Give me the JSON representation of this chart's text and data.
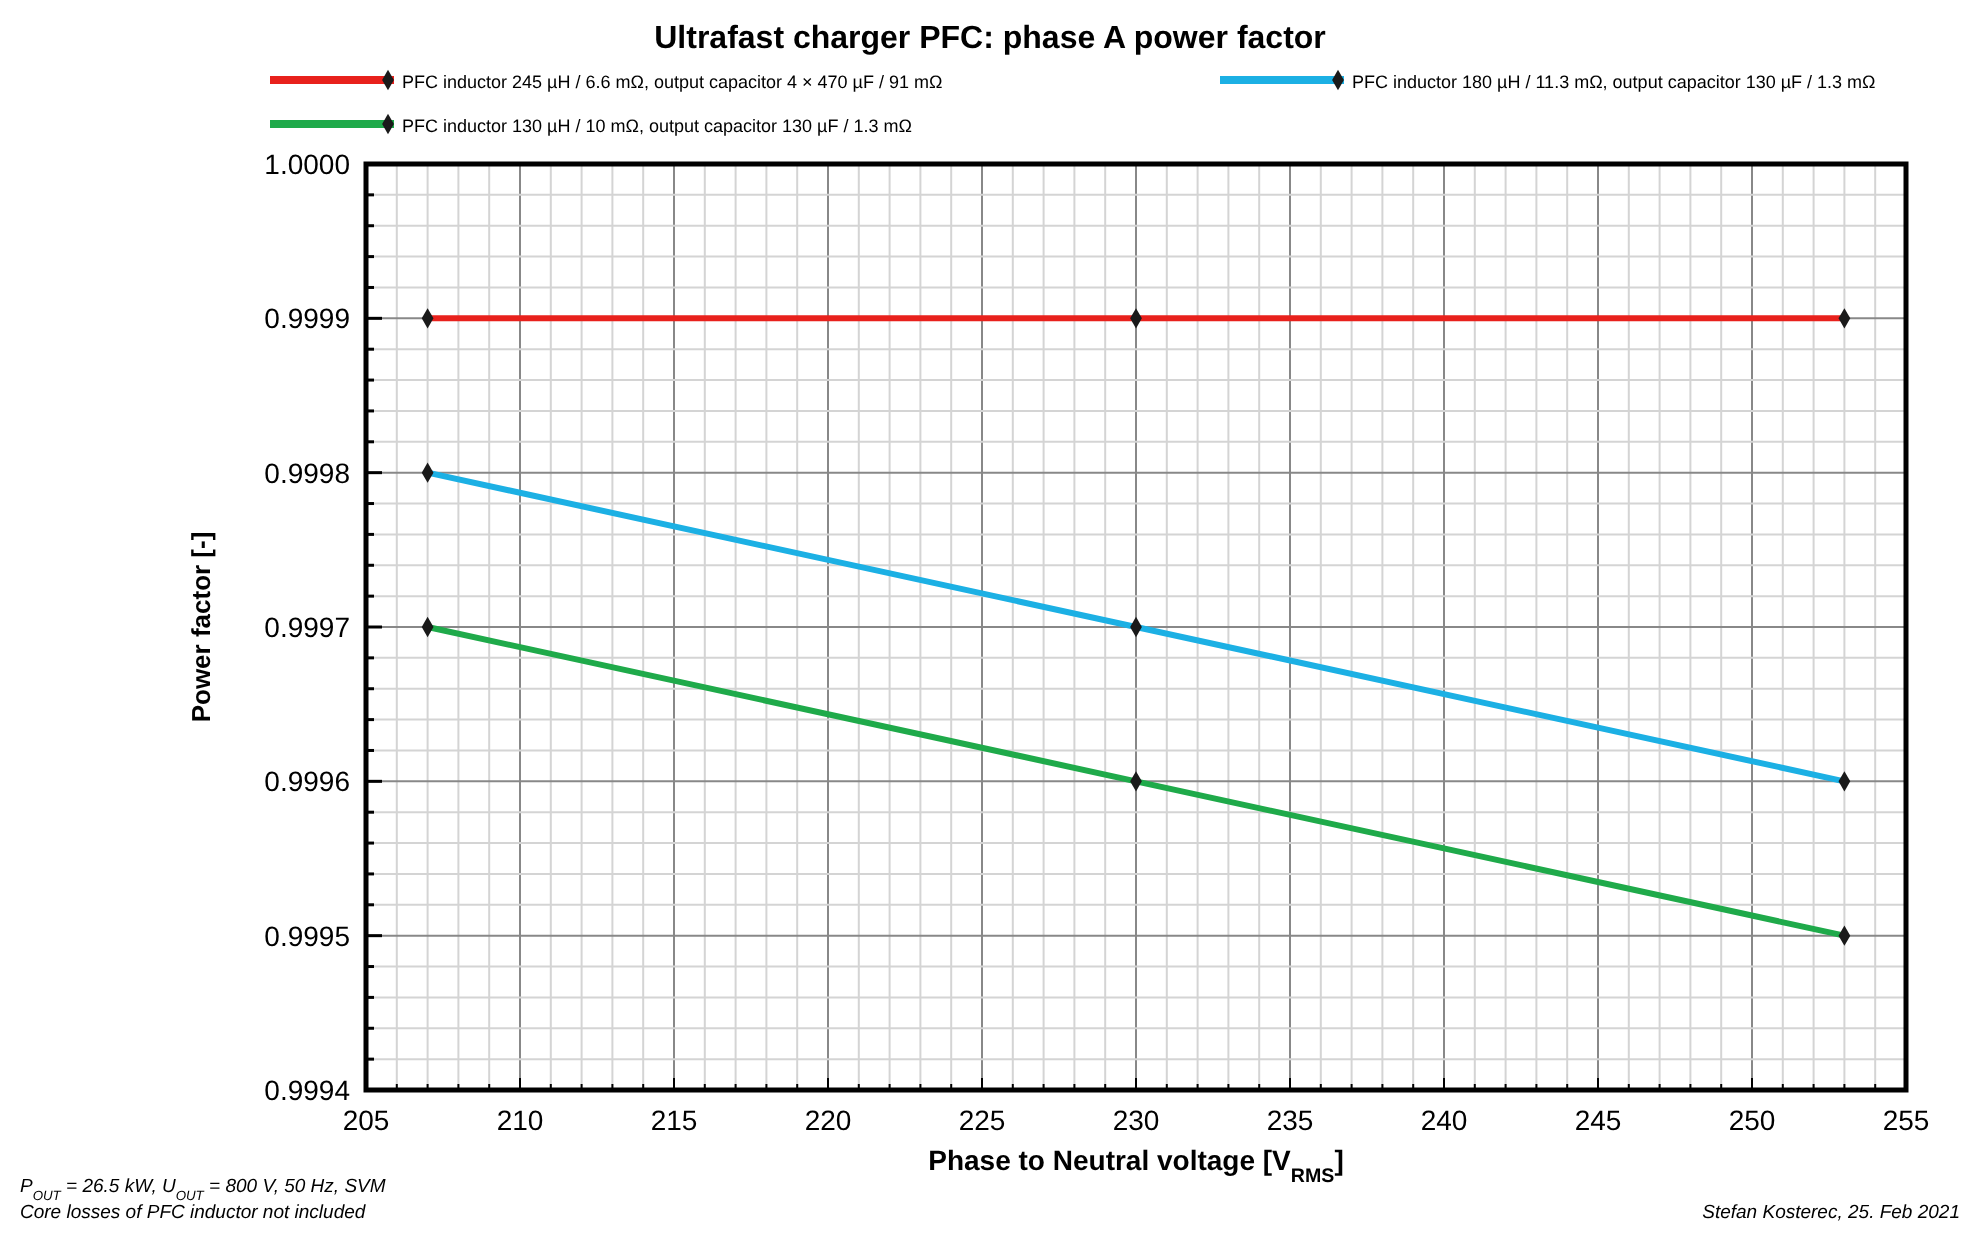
{
  "chart_data": {
    "type": "line",
    "title": "Ultrafast charger PFC: phase A power factor",
    "xlabel": "Phase to Neutral voltage [V$_{RMS}$]",
    "ylabel": "Power factor [-]",
    "annotations": [
      "P$_{OUT}$ = 26.5 kW, U$_{OUT}$ = 800 V, 50 Hz, SVM",
      "Core losses of PFC inductor not included",
      "Stefan Kosterec, 25. Feb 2021"
    ],
    "x": [
      207,
      230,
      253
    ],
    "series": [
      {
        "name": "PFC inductor 245 µH / 6.6 mΩ, output capacitor 4 × 470 µF / 91 mΩ",
        "color": "#e8211c",
        "values": [
          0.9999,
          0.9999,
          0.9999
        ]
      },
      {
        "name": "PFC inductor 180 µH / 11.3 mΩ, output capacitor 130 µF / 1.3 mΩ",
        "color": "#1cb0e4",
        "values": [
          0.9998,
          0.9997,
          0.9996
        ]
      },
      {
        "name": "PFC inductor 130 µH / 10 mΩ, output capacitor 130 µF / 1.3 mΩ",
        "color": "#1faa4a",
        "values": [
          0.9997,
          0.9996,
          0.9995
        ]
      }
    ],
    "xlim": [
      205,
      255
    ],
    "xticks": [
      205,
      {
        "value": 206,
        "label": null
      },
      {
        "value": 207,
        "label": null
      },
      {
        "value": 208,
        "label": null
      },
      {
        "value": 209,
        "label": null
      },
      210,
      {
        "value": 211,
        "label": null
      },
      {
        "value": 212,
        "label": null
      },
      {
        "value": 213,
        "label": null
      },
      {
        "value": 214,
        "label": null
      },
      215,
      {
        "value": 216,
        "label": null
      },
      {
        "value": 217,
        "label": null
      },
      {
        "value": 218,
        "label": null
      },
      {
        "value": 219,
        "label": null
      },
      220,
      {
        "value": 221,
        "label": null
      },
      {
        "value": 222,
        "label": null
      },
      {
        "value": 223,
        "label": null
      },
      {
        "value": 224,
        "label": null
      },
      225,
      {
        "value": 226,
        "label": null
      },
      {
        "value": 227,
        "label": null
      },
      {
        "value": 228,
        "label": null
      },
      {
        "value": 229,
        "label": null
      },
      230,
      {
        "value": 231,
        "label": null
      },
      {
        "value": 232,
        "label": null
      },
      {
        "value": 233,
        "label": null
      },
      {
        "value": 234,
        "label": null
      },
      235,
      {
        "value": 236,
        "label": null
      },
      {
        "value": 237,
        "label": null
      },
      {
        "value": 238,
        "label": null
      },
      {
        "value": 239,
        "label": null
      },
      240,
      {
        "value": 241,
        "label": null
      },
      {
        "value": 242,
        "label": null
      },
      {
        "value": 243,
        "label": null
      },
      {
        "value": 244,
        "label": null
      },
      245,
      {
        "value": 246,
        "label": null
      },
      {
        "value": 247,
        "label": null
      },
      {
        "value": 248,
        "label": null
      },
      {
        "value": 249,
        "label": null
      },
      250,
      {
        "value": 251,
        "label": null
      },
      {
        "value": 252,
        "label": null
      },
      {
        "value": 253,
        "label": null
      },
      {
        "value": 254,
        "label": null
      },
      255
    ],
    "ylim": [
      0.9994,
      1.0
    ],
    "yticks": [
      0.9994,
      {
        "value": 0.99942,
        "label": null
      },
      {
        "value": 0.99944,
        "label": null
      },
      {
        "value": 0.99946,
        "label": null
      },
      {
        "value": 0.99948,
        "label": null
      },
      0.9995,
      {
        "value": 0.99952,
        "label": null
      },
      {
        "value": 0.99954,
        "label": null
      },
      {
        "value": 0.99956,
        "label": null
      },
      {
        "value": 0.99958,
        "label": null
      },
      0.9996,
      {
        "value": 0.99962,
        "label": null
      },
      {
        "value": 0.99964,
        "label": null
      },
      {
        "value": 0.99966,
        "label": null
      },
      {
        "value": 0.99968,
        "label": null
      },
      0.9997,
      {
        "value": 0.99972,
        "label": null
      },
      {
        "value": 0.99974,
        "label": null
      },
      {
        "value": 0.99976,
        "label": null
      },
      {
        "value": 0.99978,
        "label": null
      },
      0.9998,
      {
        "value": 0.99982,
        "label": null
      },
      {
        "value": 0.99984,
        "label": null
      },
      {
        "value": 0.99986,
        "label": null
      },
      {
        "value": 0.99988,
        "label": null
      },
      0.9999,
      {
        "value": 0.99992,
        "label": null
      },
      {
        "value": 0.99994,
        "label": null
      },
      {
        "value": 0.99996,
        "label": null
      },
      {
        "value": 0.99998,
        "label": null
      },
      {
        "value": 1.0,
        "label": "1.0000"
      }
    ],
    "grid": true,
    "legend": "top",
    "marker": "diamond",
    "line_style": "solid"
  }
}
